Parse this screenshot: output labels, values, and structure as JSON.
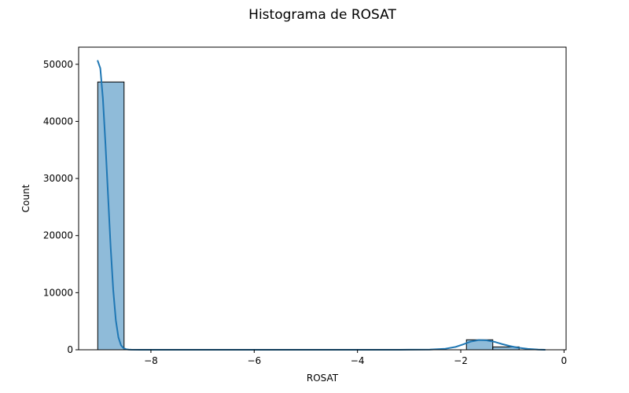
{
  "chart_data": {
    "type": "bar",
    "subtype": "histogram-with-kde",
    "title": "Histograma de ROSAT",
    "xlabel": "ROSAT",
    "ylabel": "Count",
    "xlim": [
      -9.4,
      0.04
    ],
    "ylim": [
      0,
      53000
    ],
    "x_ticks": [
      -8,
      -6,
      -4,
      -2,
      0
    ],
    "x_tick_labels": [
      "−8",
      "−6",
      "−4",
      "−2",
      "0"
    ],
    "y_ticks": [
      0,
      10000,
      20000,
      30000,
      40000,
      50000
    ],
    "y_tick_labels": [
      "0",
      "10000",
      "20000",
      "30000",
      "40000",
      "50000"
    ],
    "bins": [
      {
        "x0": -9.03,
        "x1": -8.52,
        "count": 46900
      },
      {
        "x0": -8.52,
        "x1": -8.01,
        "count": 0
      },
      {
        "x0": -8.01,
        "x1": -7.5,
        "count": 0
      },
      {
        "x0": -7.5,
        "x1": -6.99,
        "count": 0
      },
      {
        "x0": -6.99,
        "x1": -6.48,
        "count": 0
      },
      {
        "x0": -6.48,
        "x1": -5.97,
        "count": 0
      },
      {
        "x0": -5.97,
        "x1": -5.46,
        "count": 0
      },
      {
        "x0": -5.46,
        "x1": -4.95,
        "count": 0
      },
      {
        "x0": -4.95,
        "x1": -4.44,
        "count": 0
      },
      {
        "x0": -4.44,
        "x1": -3.93,
        "count": 0
      },
      {
        "x0": -3.93,
        "x1": -3.42,
        "count": 0
      },
      {
        "x0": -3.42,
        "x1": -2.91,
        "count": 0
      },
      {
        "x0": -2.91,
        "x1": -2.4,
        "count": 0
      },
      {
        "x0": -2.4,
        "x1": -1.89,
        "count": 0
      },
      {
        "x0": -1.89,
        "x1": -1.38,
        "count": 1750
      },
      {
        "x0": -1.38,
        "x1": -0.87,
        "count": 500
      }
    ],
    "kde": {
      "x": [
        -9.03,
        -8.98,
        -8.93,
        -8.88,
        -8.83,
        -8.78,
        -8.73,
        -8.68,
        -8.63,
        -8.58,
        -8.53,
        -8.48,
        -8.43,
        -8.38,
        -8.2,
        -7.5,
        -6.5,
        -5.5,
        -4.5,
        -3.5,
        -3.0,
        -2.6,
        -2.3,
        -2.1,
        -1.95,
        -1.8,
        -1.65,
        -1.5,
        -1.35,
        -1.2,
        -1.05,
        -0.9,
        -0.7,
        -0.5,
        -0.37
      ],
      "y": [
        50600,
        49300,
        44000,
        36000,
        27000,
        18000,
        10500,
        5200,
        2200,
        800,
        280,
        90,
        30,
        10,
        0,
        0,
        0,
        0,
        0,
        0,
        10,
        40,
        180,
        500,
        950,
        1450,
        1700,
        1650,
        1400,
        1000,
        650,
        380,
        150,
        40,
        5
      ]
    },
    "colors": {
      "bar_fill": "#1f77b4",
      "bar_fill_opacity": 0.5,
      "bar_edge": "#000000",
      "kde_line": "#1f77b4"
    },
    "grid": false,
    "legend": "none"
  }
}
